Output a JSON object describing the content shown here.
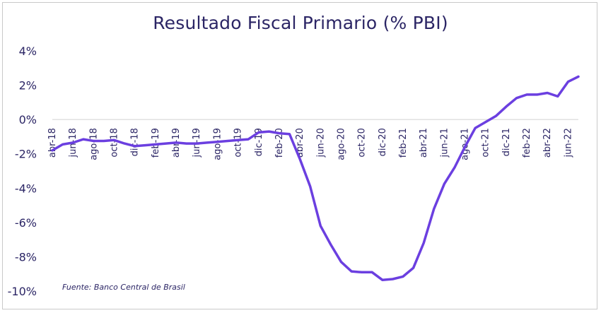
{
  "chart_data": {
    "type": "line",
    "title": "Resultado Fiscal Primario (% PBI)",
    "source": "Fuente: Banco Central de Brasil",
    "xlabel": "",
    "ylabel": "",
    "ylim": [
      -10,
      4
    ],
    "yticks": [
      "4%",
      "2%",
      "0%",
      "-2%",
      "-4%",
      "-6%",
      "-8%",
      "-10%"
    ],
    "ytick_values": [
      4,
      2,
      0,
      -2,
      -4,
      -6,
      -8,
      -10
    ],
    "x_tick_labels": [
      "abr-18",
      "jun-18",
      "ago-18",
      "oct-18",
      "dic-18",
      "feb-19",
      "abr-19",
      "jun-19",
      "ago-19",
      "oct-19",
      "dic-19",
      "feb-20",
      "abr-20",
      "jun-20",
      "ago-20",
      "oct-20",
      "dic-20",
      "feb-21",
      "abr-21",
      "jun-21",
      "ago-21",
      "oct-21",
      "dic-21",
      "feb-22",
      "abr-22",
      "jun-22"
    ],
    "grid": false,
    "line_color": "#6b3fe0",
    "series": [
      {
        "x": [
          "abr-18",
          "may-18",
          "jun-18",
          "jul-18",
          "ago-18",
          "sep-18",
          "oct-18",
          "nov-18",
          "dic-18",
          "ene-19",
          "feb-19",
          "mar-19",
          "abr-19",
          "may-19",
          "jun-19",
          "jul-19",
          "ago-19",
          "sep-19",
          "oct-19",
          "nov-19",
          "dic-19",
          "ene-20",
          "feb-20",
          "mar-20",
          "abr-20",
          "may-20",
          "jun-20",
          "jul-20",
          "ago-20",
          "sep-20",
          "oct-20",
          "nov-20",
          "dic-20",
          "ene-21",
          "feb-21",
          "mar-21",
          "abr-21",
          "may-21",
          "jun-21",
          "jul-21",
          "ago-21",
          "sep-21",
          "oct-21",
          "nov-21",
          "dic-21",
          "ene-22",
          "feb-22",
          "mar-22",
          "abr-22",
          "may-22",
          "jun-22",
          "jul-22"
        ],
        "values": [
          -1.8,
          -1.45,
          -1.35,
          -1.15,
          -1.25,
          -1.25,
          -1.2,
          -1.4,
          -1.55,
          -1.5,
          -1.45,
          -1.4,
          -1.35,
          -1.4,
          -1.4,
          -1.35,
          -1.3,
          -1.25,
          -1.2,
          -1.15,
          -0.75,
          -0.7,
          -0.8,
          -0.85,
          -2.3,
          -3.9,
          -6.2,
          -7.3,
          -8.3,
          -8.85,
          -8.9,
          -8.9,
          -9.35,
          -9.3,
          -9.15,
          -8.65,
          -7.2,
          -5.2,
          -3.75,
          -2.8,
          -1.6,
          -0.5,
          -0.15,
          0.2,
          0.75,
          1.25,
          1.45,
          1.45,
          1.55,
          1.35,
          2.2,
          2.5
        ]
      }
    ]
  }
}
